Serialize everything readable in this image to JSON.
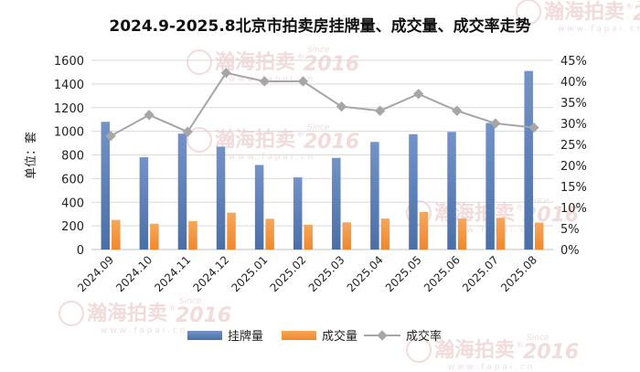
{
  "chart_data": {
    "type": "bar",
    "title": "2024.9-2025.8北京市拍卖房挂牌量、成交量、成交率走势",
    "ylabel": "单位：套",
    "categories": [
      "2024.09",
      "2024.10",
      "2024.11",
      "2024.12",
      "2025.01",
      "2025.02",
      "2025.03",
      "2025.04",
      "2025.05",
      "2025.06",
      "2025.07",
      "2025.08"
    ],
    "ylim": [
      0,
      1600
    ],
    "yticks": [
      "0",
      "200",
      "400",
      "600",
      "800",
      "1000",
      "1200",
      "1400",
      "1600"
    ],
    "y2lim": [
      0,
      45
    ],
    "y2ticks": [
      "0%",
      "5%",
      "10%",
      "15%",
      "20%",
      "25%",
      "30%",
      "35%",
      "40%",
      "45%"
    ],
    "series": [
      {
        "name": "挂牌量",
        "type": "bar",
        "axis": "left",
        "color": "#4a6fa8",
        "values": [
          1080,
          780,
          980,
          870,
          715,
          610,
          775,
          910,
          975,
          995,
          1070,
          1510
        ]
      },
      {
        "name": "成交量",
        "type": "bar",
        "axis": "left",
        "color": "#f0882a",
        "values": [
          250,
          218,
          240,
          312,
          260,
          210,
          230,
          262,
          318,
          262,
          268,
          228
        ]
      },
      {
        "name": "成交率",
        "type": "line",
        "axis": "right",
        "color": "#a6a6a6",
        "values": [
          27,
          32,
          28,
          42,
          40,
          40,
          34,
          33,
          37,
          33,
          30,
          29
        ]
      }
    ],
    "legend_position": "bottom",
    "grid": true
  },
  "watermark": {
    "brand": "瀚海拍卖",
    "since": "Since",
    "year": "2016",
    "url": "w w w . f a p a i . c n",
    "registered": "®"
  }
}
